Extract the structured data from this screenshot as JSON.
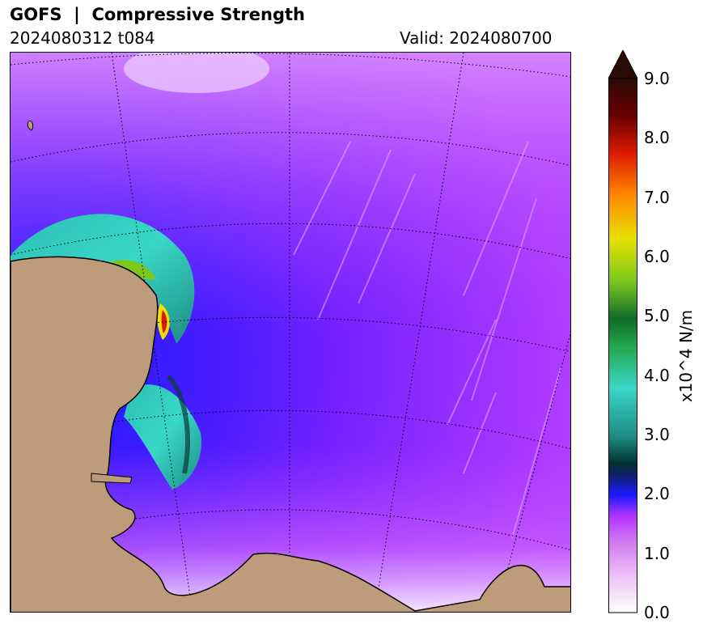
{
  "header": {
    "title": "GOFS  |  Compressive Strength",
    "init_time": "2024080312 t084",
    "valid_time": "Valid: 2024080700"
  },
  "colorbar": {
    "unit": "x10^4 N/m",
    "ticks": [
      "0.0",
      "1.0",
      "2.0",
      "3.0",
      "4.0",
      "5.0",
      "6.0",
      "7.0",
      "8.0",
      "9.0"
    ],
    "range": [
      0,
      9
    ],
    "extend": "max",
    "colors": {
      "land": "#be9b7b",
      "low": "#ffffff",
      "mid_low": "#cc55ff",
      "mid": "#1a1aff",
      "teal": "#39d7c8",
      "green": "#22a64a",
      "yellow": "#f0e000",
      "red": "#dd1a00",
      "high": "#2a0a05"
    }
  },
  "map": {
    "field": "Compressive Strength",
    "projection": "polar stereographic",
    "gridlines": "dotted"
  }
}
